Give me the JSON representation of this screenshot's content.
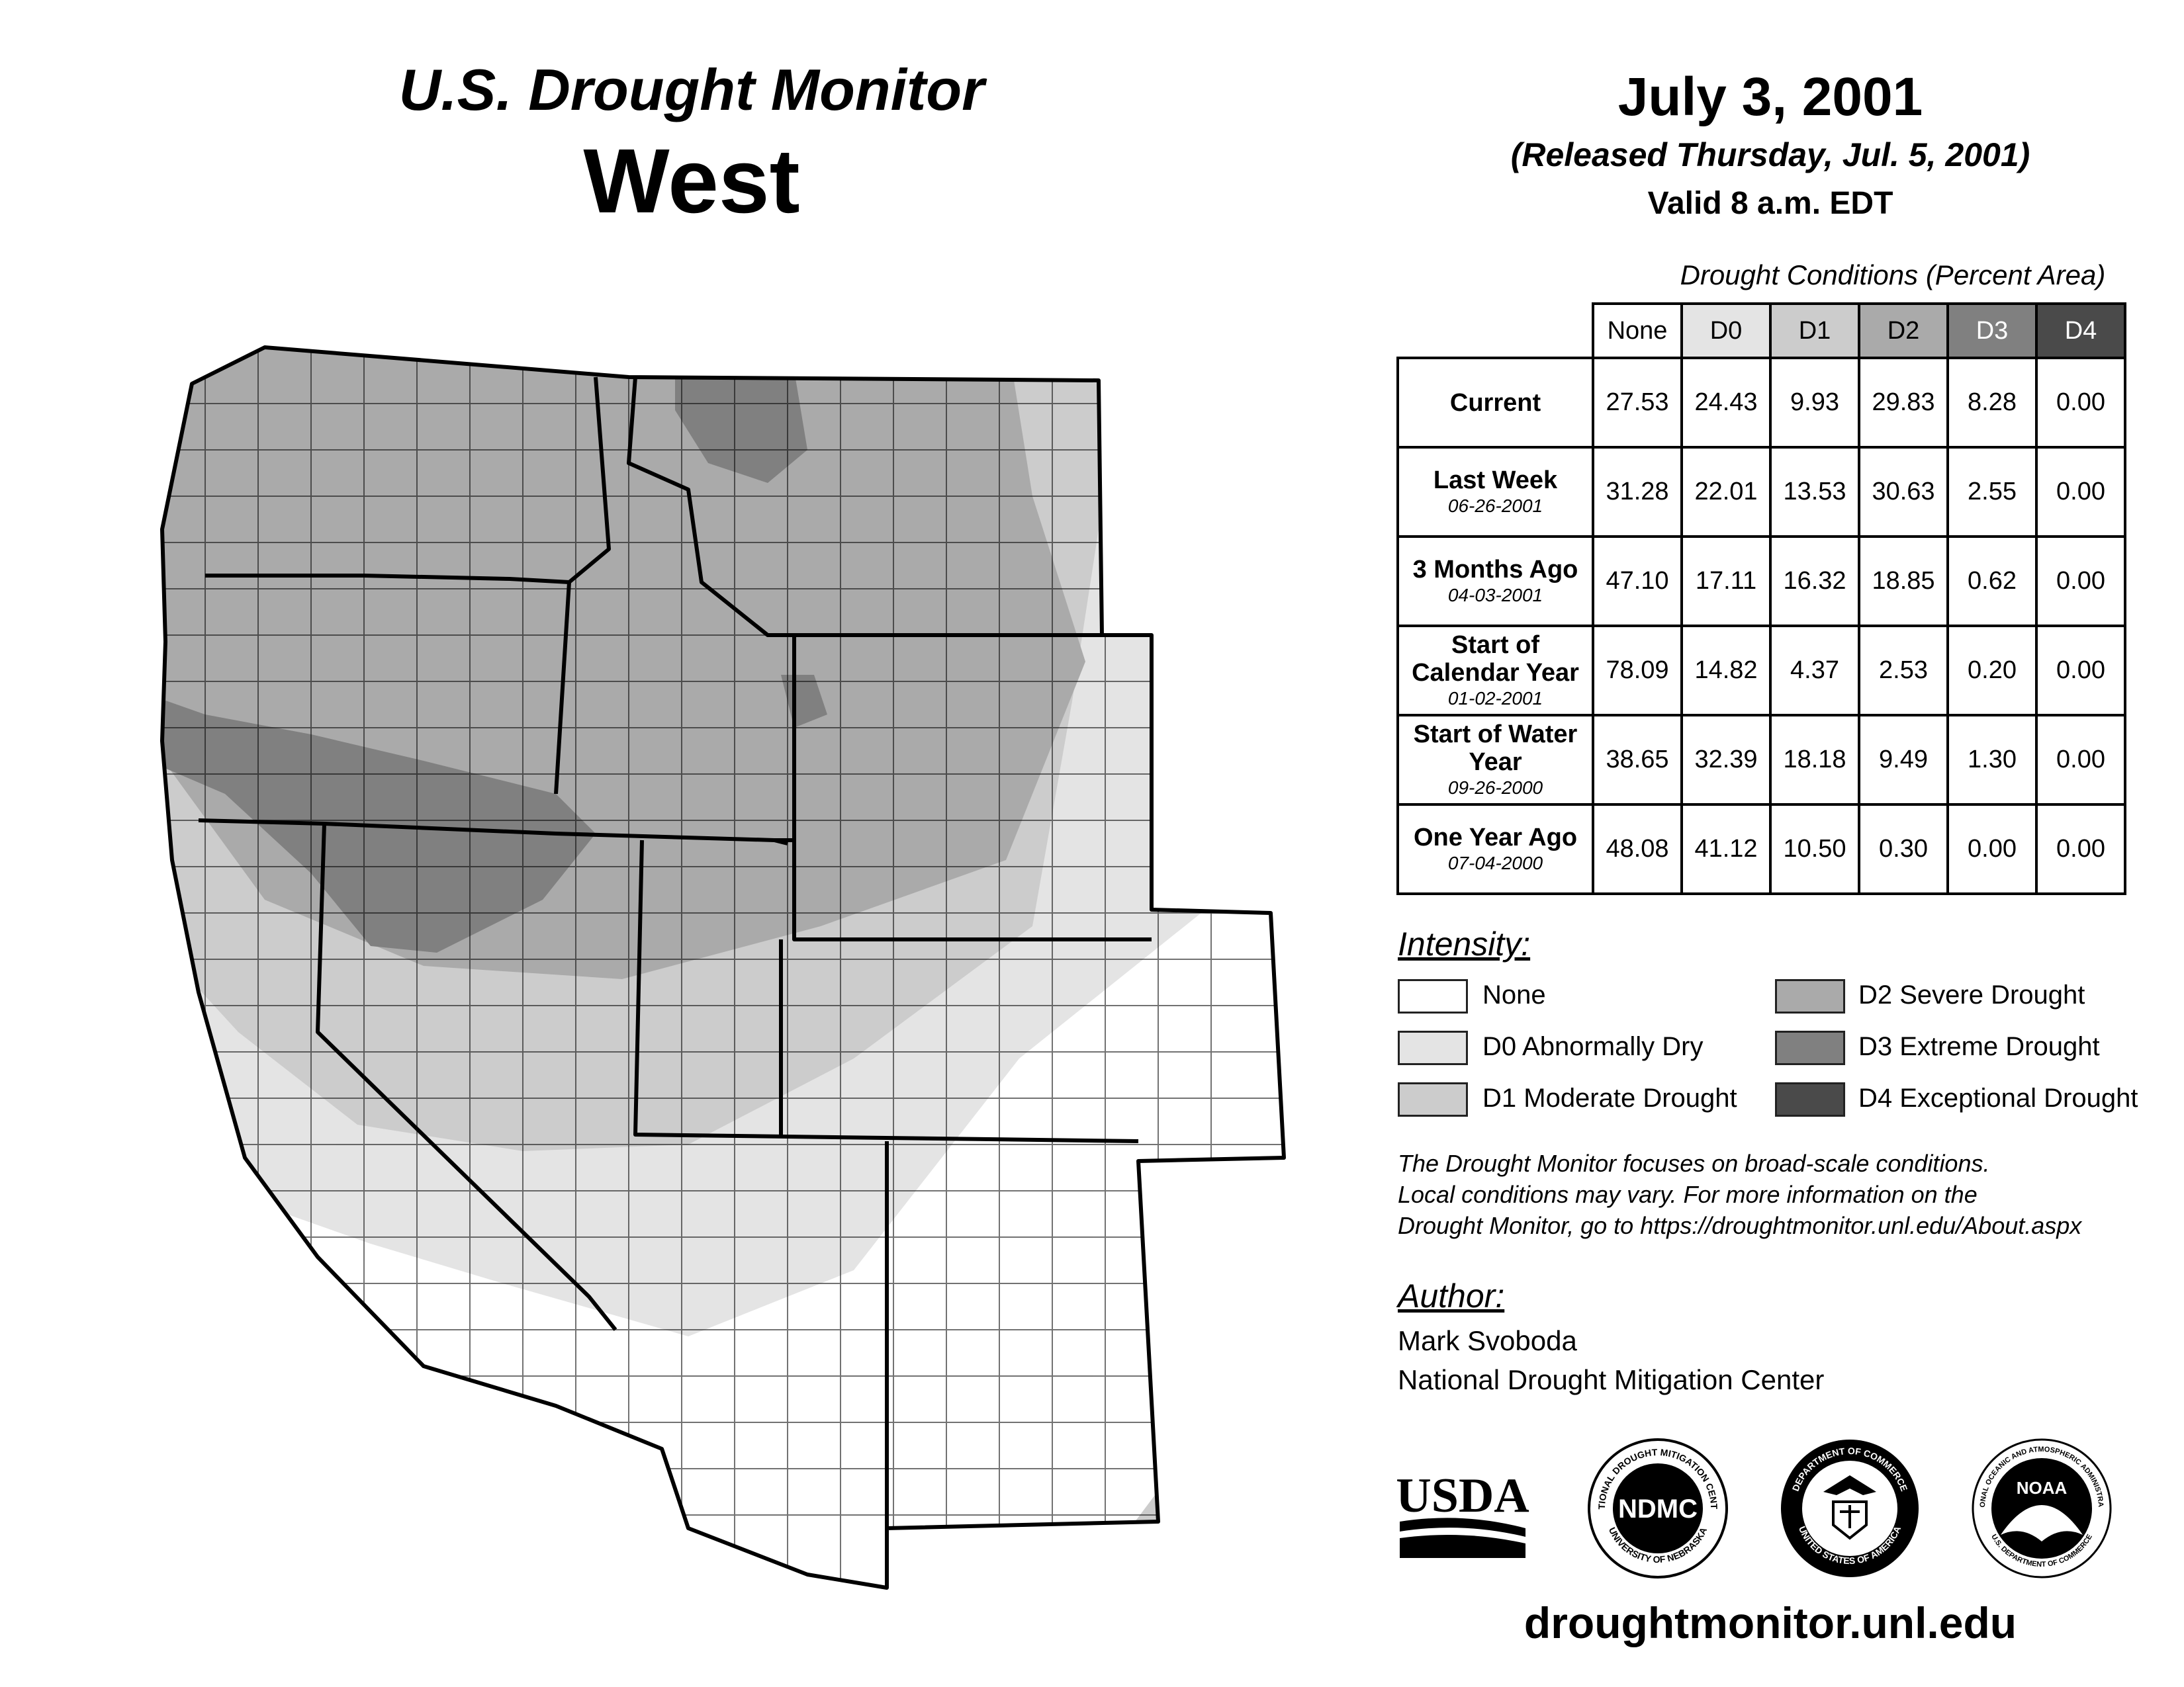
{
  "header": {
    "line1": "U.S. Drought Monitor",
    "line2": "West",
    "date": "July 3, 2001",
    "released": "(Released Thursday, Jul. 5, 2001)",
    "valid": "Valid 8 a.m. EDT"
  },
  "table": {
    "caption": "Drought Conditions (Percent Area)",
    "columns": [
      "None",
      "D0",
      "D1",
      "D2",
      "D3",
      "D4"
    ],
    "column_colors": [
      "#ffffff",
      "#e4e4e4",
      "#cccccc",
      "#aaaaaa",
      "#808080",
      "#4a4a4a"
    ],
    "rows": [
      {
        "label": "Current",
        "date": "",
        "values": [
          "27.53",
          "24.43",
          "9.93",
          "29.83",
          "8.28",
          "0.00"
        ]
      },
      {
        "label": "Last Week",
        "date": "06-26-2001",
        "values": [
          "31.28",
          "22.01",
          "13.53",
          "30.63",
          "2.55",
          "0.00"
        ]
      },
      {
        "label": "3 Months Ago",
        "date": "04-03-2001",
        "values": [
          "47.10",
          "17.11",
          "16.32",
          "18.85",
          "0.62",
          "0.00"
        ]
      },
      {
        "label": "Start of Calendar Year",
        "date": "01-02-2001",
        "values": [
          "78.09",
          "14.82",
          "4.37",
          "2.53",
          "0.20",
          "0.00"
        ]
      },
      {
        "label": "Start of Water Year",
        "date": "09-26-2000",
        "values": [
          "38.65",
          "32.39",
          "18.18",
          "9.49",
          "1.30",
          "0.00"
        ]
      },
      {
        "label": "One Year Ago",
        "date": "07-04-2000",
        "values": [
          "48.08",
          "41.12",
          "10.50",
          "0.30",
          "0.00",
          "0.00"
        ]
      }
    ]
  },
  "legend": {
    "title": "Intensity:",
    "items": [
      {
        "label": "None",
        "color": "#ffffff"
      },
      {
        "label": "D0 Abnormally Dry",
        "color": "#e4e4e4"
      },
      {
        "label": "D1 Moderate Drought",
        "color": "#cccccc"
      },
      {
        "label": "D2 Severe Drought",
        "color": "#aaaaaa"
      },
      {
        "label": "D3 Extreme Drought",
        "color": "#808080"
      },
      {
        "label": "D4 Exceptional Drought",
        "color": "#4a4a4a"
      }
    ]
  },
  "note": {
    "line1": "The Drought Monitor focuses on broad-scale conditions.",
    "line2": "Local conditions may vary. For more information on the",
    "line3": "Drought Monitor, go to https://droughtmonitor.unl.edu/About.aspx"
  },
  "author": {
    "title": "Author:",
    "name": "Mark Svoboda",
    "org": "National Drought Mitigation Center"
  },
  "logos": {
    "usda": "USDA",
    "ndmc": "NDMC",
    "ndmc_ring_top": "NATIONAL DROUGHT MITIGATION CENTER",
    "ndmc_ring_bottom": "UNIVERSITY OF NEBRASKA",
    "doc_ring_top": "DEPARTMENT OF COMMERCE",
    "doc_ring_bottom": "UNITED STATES OF AMERICA",
    "noaa": "NOAA",
    "noaa_ring_top": "NATIONAL OCEANIC AND ATMOSPHERIC ADMINISTRATION",
    "noaa_ring_bottom": "U.S. DEPARTMENT OF COMMERCE"
  },
  "footer": {
    "url": "droughtmonitor.unl.edu"
  }
}
